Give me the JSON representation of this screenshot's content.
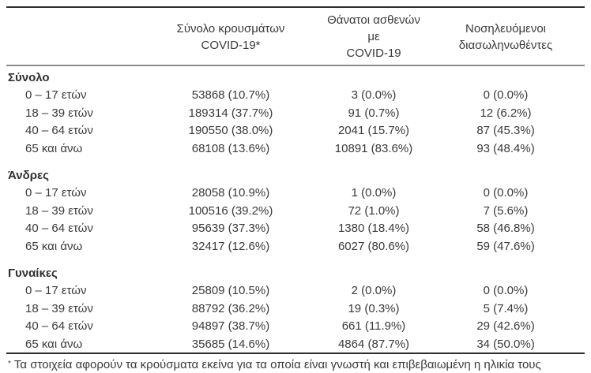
{
  "table": {
    "columns": [
      {
        "label": ""
      },
      {
        "label": "Σύνολο κρουσμάτων\nCOVID-19*"
      },
      {
        "label": "Θάνατοι ασθενών με\nCOVID-19"
      },
      {
        "label": "Νοσηλευόμενοι\nδιασωληνωθέντες"
      }
    ],
    "groups": [
      {
        "label": "Σύνολο",
        "rows": [
          {
            "label": "0 – 17 ετών",
            "cases": "53868 (10.7%)",
            "deaths": "3 (0.0%)",
            "intubated": "0 (0.0%)"
          },
          {
            "label": "18 – 39 ετών",
            "cases": "189314 (37.7%)",
            "deaths": "91 (0.7%)",
            "intubated": "12 (6.2%)"
          },
          {
            "label": "40 – 64 ετών",
            "cases": "190550 (38.0%)",
            "deaths": "2041 (15.7%)",
            "intubated": "87 (45.3%)"
          },
          {
            "label": "65 και άνω",
            "cases": "68108 (13.6%)",
            "deaths": "10891 (83.6%)",
            "intubated": "93 (48.4%)"
          }
        ]
      },
      {
        "label": "Άνδρες",
        "rows": [
          {
            "label": "0 – 17 ετών",
            "cases": "28058 (10.9%)",
            "deaths": "1 (0.0%)",
            "intubated": "0 (0.0%)"
          },
          {
            "label": "18 – 39 ετών",
            "cases": "100516 (39.2%)",
            "deaths": "72 (1.0%)",
            "intubated": "7 (5.6%)"
          },
          {
            "label": "40 – 64 ετών",
            "cases": "95639 (37.3%)",
            "deaths": "1380 (18.4%)",
            "intubated": "58 (46.8%)"
          },
          {
            "label": "65 και άνω",
            "cases": "32417 (12.6%)",
            "deaths": "6027 (80.6%)",
            "intubated": "59 (47.6%)"
          }
        ]
      },
      {
        "label": "Γυναίκες",
        "rows": [
          {
            "label": "0 – 17 ετών",
            "cases": "25809 (10.5%)",
            "deaths": "2 (0.0%)",
            "intubated": "0 (0.0%)"
          },
          {
            "label": "18 – 39 ετών",
            "cases": "88792 (36.2%)",
            "deaths": "19 (0.3%)",
            "intubated": "5 (7.4%)"
          },
          {
            "label": "40 – 64 ετών",
            "cases": "94897 (38.7%)",
            "deaths": "661 (11.9%)",
            "intubated": "29 (42.6%)"
          },
          {
            "label": "65 και άνω",
            "cases": "35685 (14.6%)",
            "deaths": "4864 (87.7%)",
            "intubated": "34 (50.0%)"
          }
        ]
      }
    ],
    "footnote": {
      "marker": "*",
      "text": "Τα στοιχεία αφορούν τα κρούσματα εκείνα για τα οποία είναι γνωστή και επιβεβαιωμένη η ηλικία τους"
    }
  },
  "colors": {
    "rule_dark": "#2e2e2e",
    "rule_gray": "#8c8c8c",
    "text": "#3a3a3a"
  }
}
